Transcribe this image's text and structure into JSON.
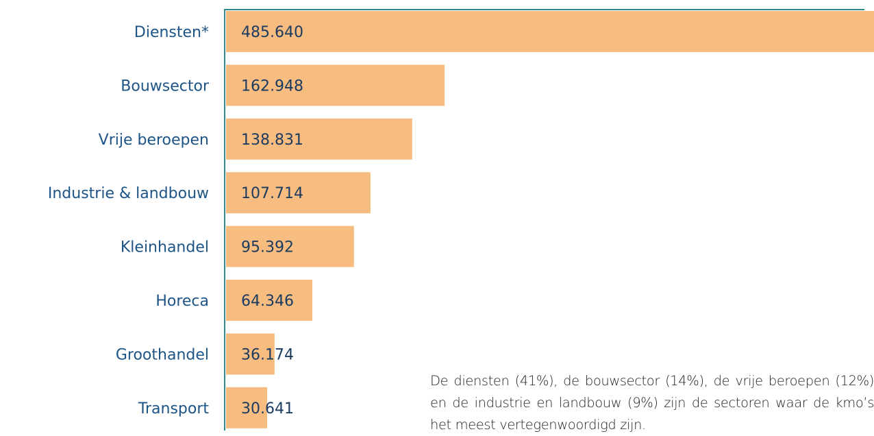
{
  "chart_data": {
    "type": "barh",
    "categories": [
      "Diensten*",
      "Bouwsector",
      "Vrije beroepen",
      "Industrie & landbouw",
      "Kleinhandel",
      "Horeca",
      "Groothandel",
      "Transport"
    ],
    "values": [
      485640,
      162948,
      138831,
      107714,
      95392,
      64346,
      36174,
      30641
    ],
    "value_labels": [
      "485.640",
      "162.948",
      "138.831",
      "107.714",
      "95.392",
      "64.346",
      "36.174",
      "30.641"
    ],
    "color": "#f6bc80",
    "annotation": "De diensten (41%), de bouwsector (14%), de vrije beroepen (12%) en de industrie en landbouw (9%) zijn de sectoren waar de kmo’s het meest vertegenwoordigd zijn."
  }
}
